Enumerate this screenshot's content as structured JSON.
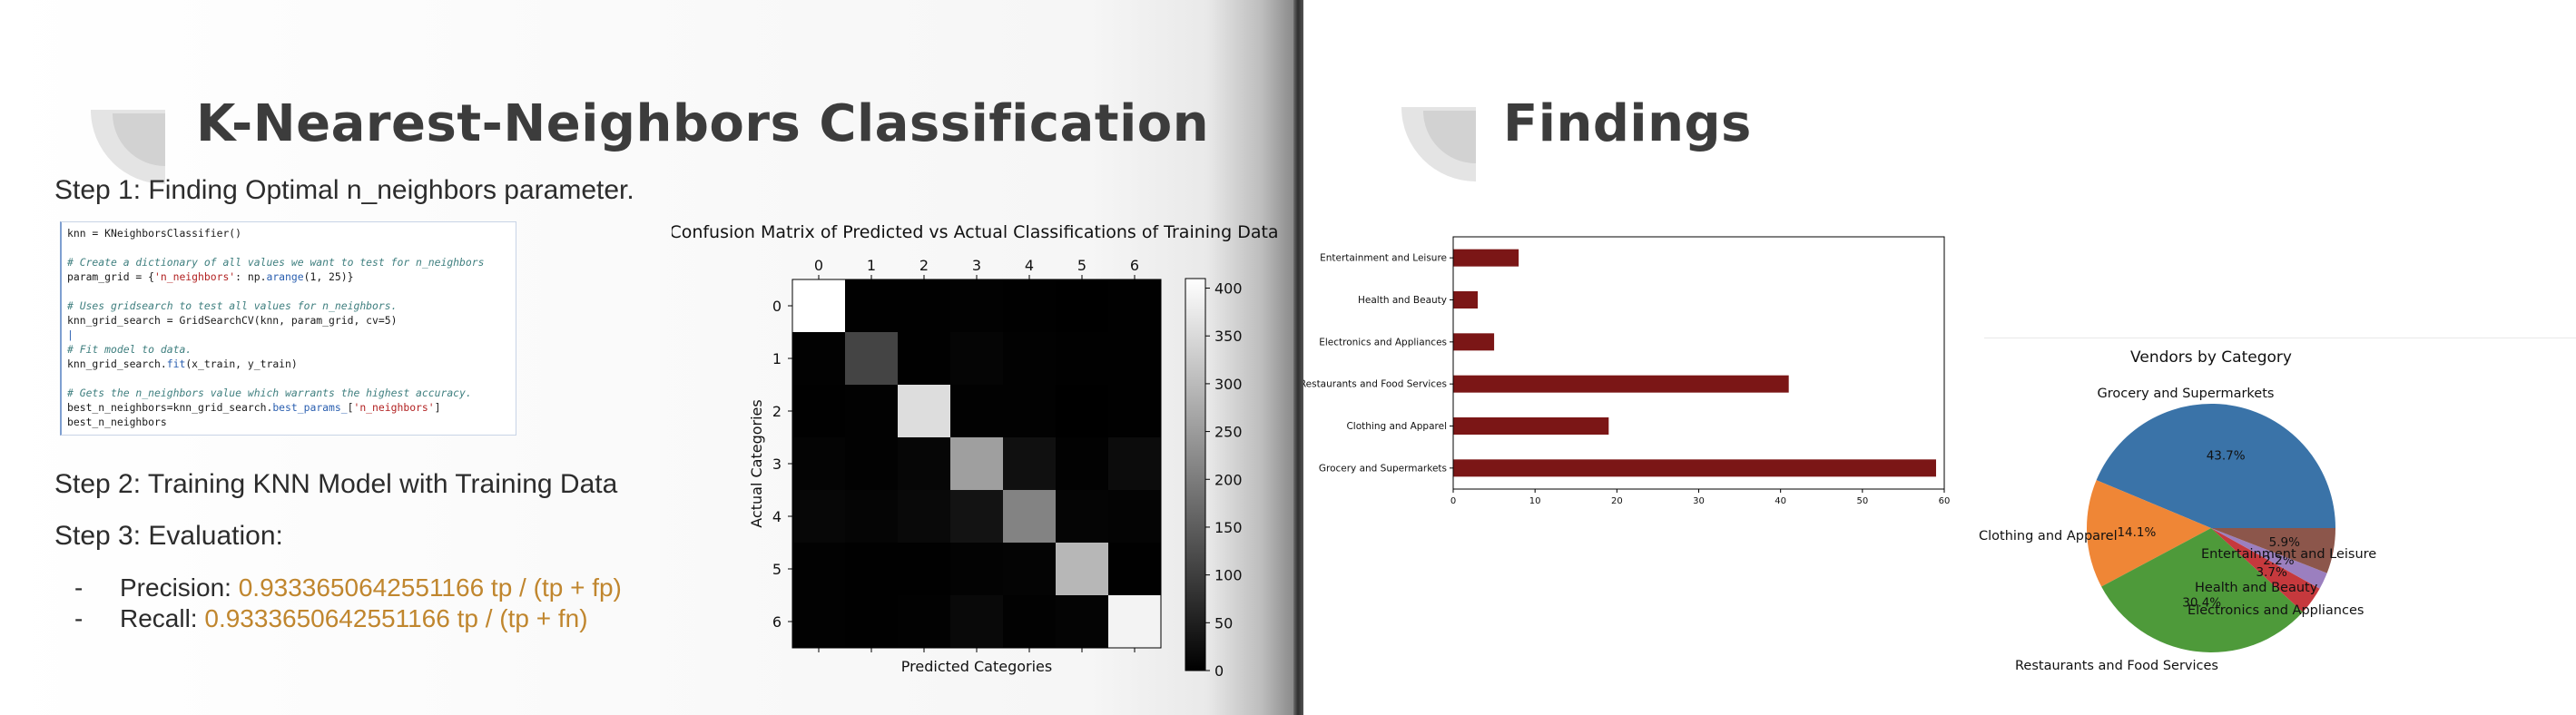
{
  "left_slide": {
    "title": "K-Nearest-Neighbors Classification",
    "step1": "Step 1: Finding Optimal n_neighbors parameter.",
    "step2": "Step 2: Training KNN Model with Training Data",
    "step3": "Step 3: Evaluation:",
    "code_lines": [
      [
        {
          "t": "knn = KNeighborsClassifier()",
          "c": "plain"
        }
      ],
      [],
      [
        {
          "t": "# Create a dictionary of all values we want to test for n_neighbors",
          "c": "cmt"
        }
      ],
      [
        {
          "t": "param_grid = {",
          "c": "plain"
        },
        {
          "t": "'n_neighbors'",
          "c": "str"
        },
        {
          "t": ": np.",
          "c": "plain"
        },
        {
          "t": "arange",
          "c": "fn"
        },
        {
          "t": "(1, 25)}",
          "c": "plain"
        }
      ],
      [],
      [
        {
          "t": "# Uses gridsearch to test all values for n_neighbors.",
          "c": "cmt"
        }
      ],
      [
        {
          "t": "knn_grid_search = GridSearchCV(knn, param_grid, cv=5)",
          "c": "plain"
        }
      ],
      [
        {
          "t": "|",
          "c": "fn"
        }
      ],
      [
        {
          "t": "# Fit model to data.",
          "c": "cmt"
        }
      ],
      [
        {
          "t": "knn_grid_search.",
          "c": "plain"
        },
        {
          "t": "fit",
          "c": "fn"
        },
        {
          "t": "(x_train, y_train)",
          "c": "plain"
        }
      ],
      [],
      [
        {
          "t": "# Gets the n_neighbors value which warrants the highest accuracy.",
          "c": "cmt"
        }
      ],
      [
        {
          "t": "best_n_neighbors=knn_grid_search.",
          "c": "plain"
        },
        {
          "t": "best_params_",
          "c": "fn"
        },
        {
          "t": "[",
          "c": "plain"
        },
        {
          "t": "'n_neighbors'",
          "c": "str"
        },
        {
          "t": "]",
          "c": "plain"
        }
      ],
      [
        {
          "t": "best_n_neighbors",
          "c": "plain"
        }
      ]
    ],
    "precision_label": "Precision: ",
    "precision_value": "0.9333650642551166 tp / (tp + fp)",
    "recall_label": "Recall: ",
    "recall_value": "0.9333650642551166 tp / (tp + fn)",
    "bullet_dash": "-",
    "colors": {
      "accent_metric": "#c0862e",
      "title": "#3c3c3c"
    }
  },
  "right_slide": {
    "title": "Findings"
  },
  "chart_data": [
    {
      "type": "heatmap",
      "title": "Confusion Matrix of Predicted vs Actual Classifications of Training Data",
      "xlabel": "Predicted Categories",
      "ylabel": "Actual Categories",
      "x_ticks": [
        "0",
        "1",
        "2",
        "3",
        "4",
        "5",
        "6"
      ],
      "y_ticks": [
        "0",
        "1",
        "2",
        "3",
        "4",
        "5",
        "6"
      ],
      "colormap": "gray",
      "vmin": 0,
      "vmax": 410,
      "colorbar_ticks": [
        "0",
        "50",
        "100",
        "150",
        "200",
        "250",
        "300",
        "350",
        "400"
      ],
      "colorbar_tick_values": [
        0,
        50,
        100,
        150,
        200,
        250,
        300,
        350,
        400
      ],
      "matrix": [
        [
          410,
          2,
          1,
          3,
          1,
          0,
          2
        ],
        [
          3,
          110,
          2,
          8,
          4,
          1,
          2
        ],
        [
          2,
          3,
          355,
          4,
          3,
          0,
          2
        ],
        [
          6,
          4,
          10,
          255,
          25,
          4,
          20
        ],
        [
          12,
          8,
          14,
          30,
          210,
          8,
          6
        ],
        [
          3,
          2,
          2,
          5,
          6,
          295,
          2
        ],
        [
          4,
          2,
          3,
          15,
          4,
          6,
          390
        ]
      ]
    },
    {
      "type": "bar",
      "orientation": "horizontal",
      "categories": [
        "Entertainment and Leisure",
        "Health and Beauty",
        "Electronics and Appliances",
        "Restaurants and Food Services",
        "Clothing and Apparel",
        "Grocery and Supermarkets"
      ],
      "values": [
        8,
        3,
        5,
        41,
        19,
        59
      ],
      "xlim": [
        0,
        60
      ],
      "x_ticks": [
        "0",
        "10",
        "20",
        "30",
        "40",
        "50",
        "60"
      ],
      "x_tick_values": [
        0,
        10,
        20,
        30,
        40,
        50,
        60
      ],
      "bar_color": "#7b1616",
      "title": "",
      "xlabel": "",
      "ylabel": ""
    },
    {
      "type": "pie",
      "title": "Vendors by Category",
      "labels": [
        "Grocery and Supermarkets",
        "Clothing and Apparel",
        "Restaurants and Food Services",
        "Electronics and Appliances",
        "Health and Beauty",
        "Entertainment and Leisure"
      ],
      "values": [
        43.7,
        14.1,
        30.4,
        3.7,
        2.2,
        5.9
      ],
      "pct_labels": [
        "43.7%",
        "14.1%",
        "30.4%",
        "3.7%",
        "2.2%",
        "5.9%"
      ],
      "colors": [
        "#3a73a8",
        "#ef8636",
        "#4e9a3a",
        "#c6393d",
        "#9b7fbf",
        "#8c564b"
      ],
      "start_angle_deg": 0,
      "direction": "counterclockwise"
    }
  ]
}
